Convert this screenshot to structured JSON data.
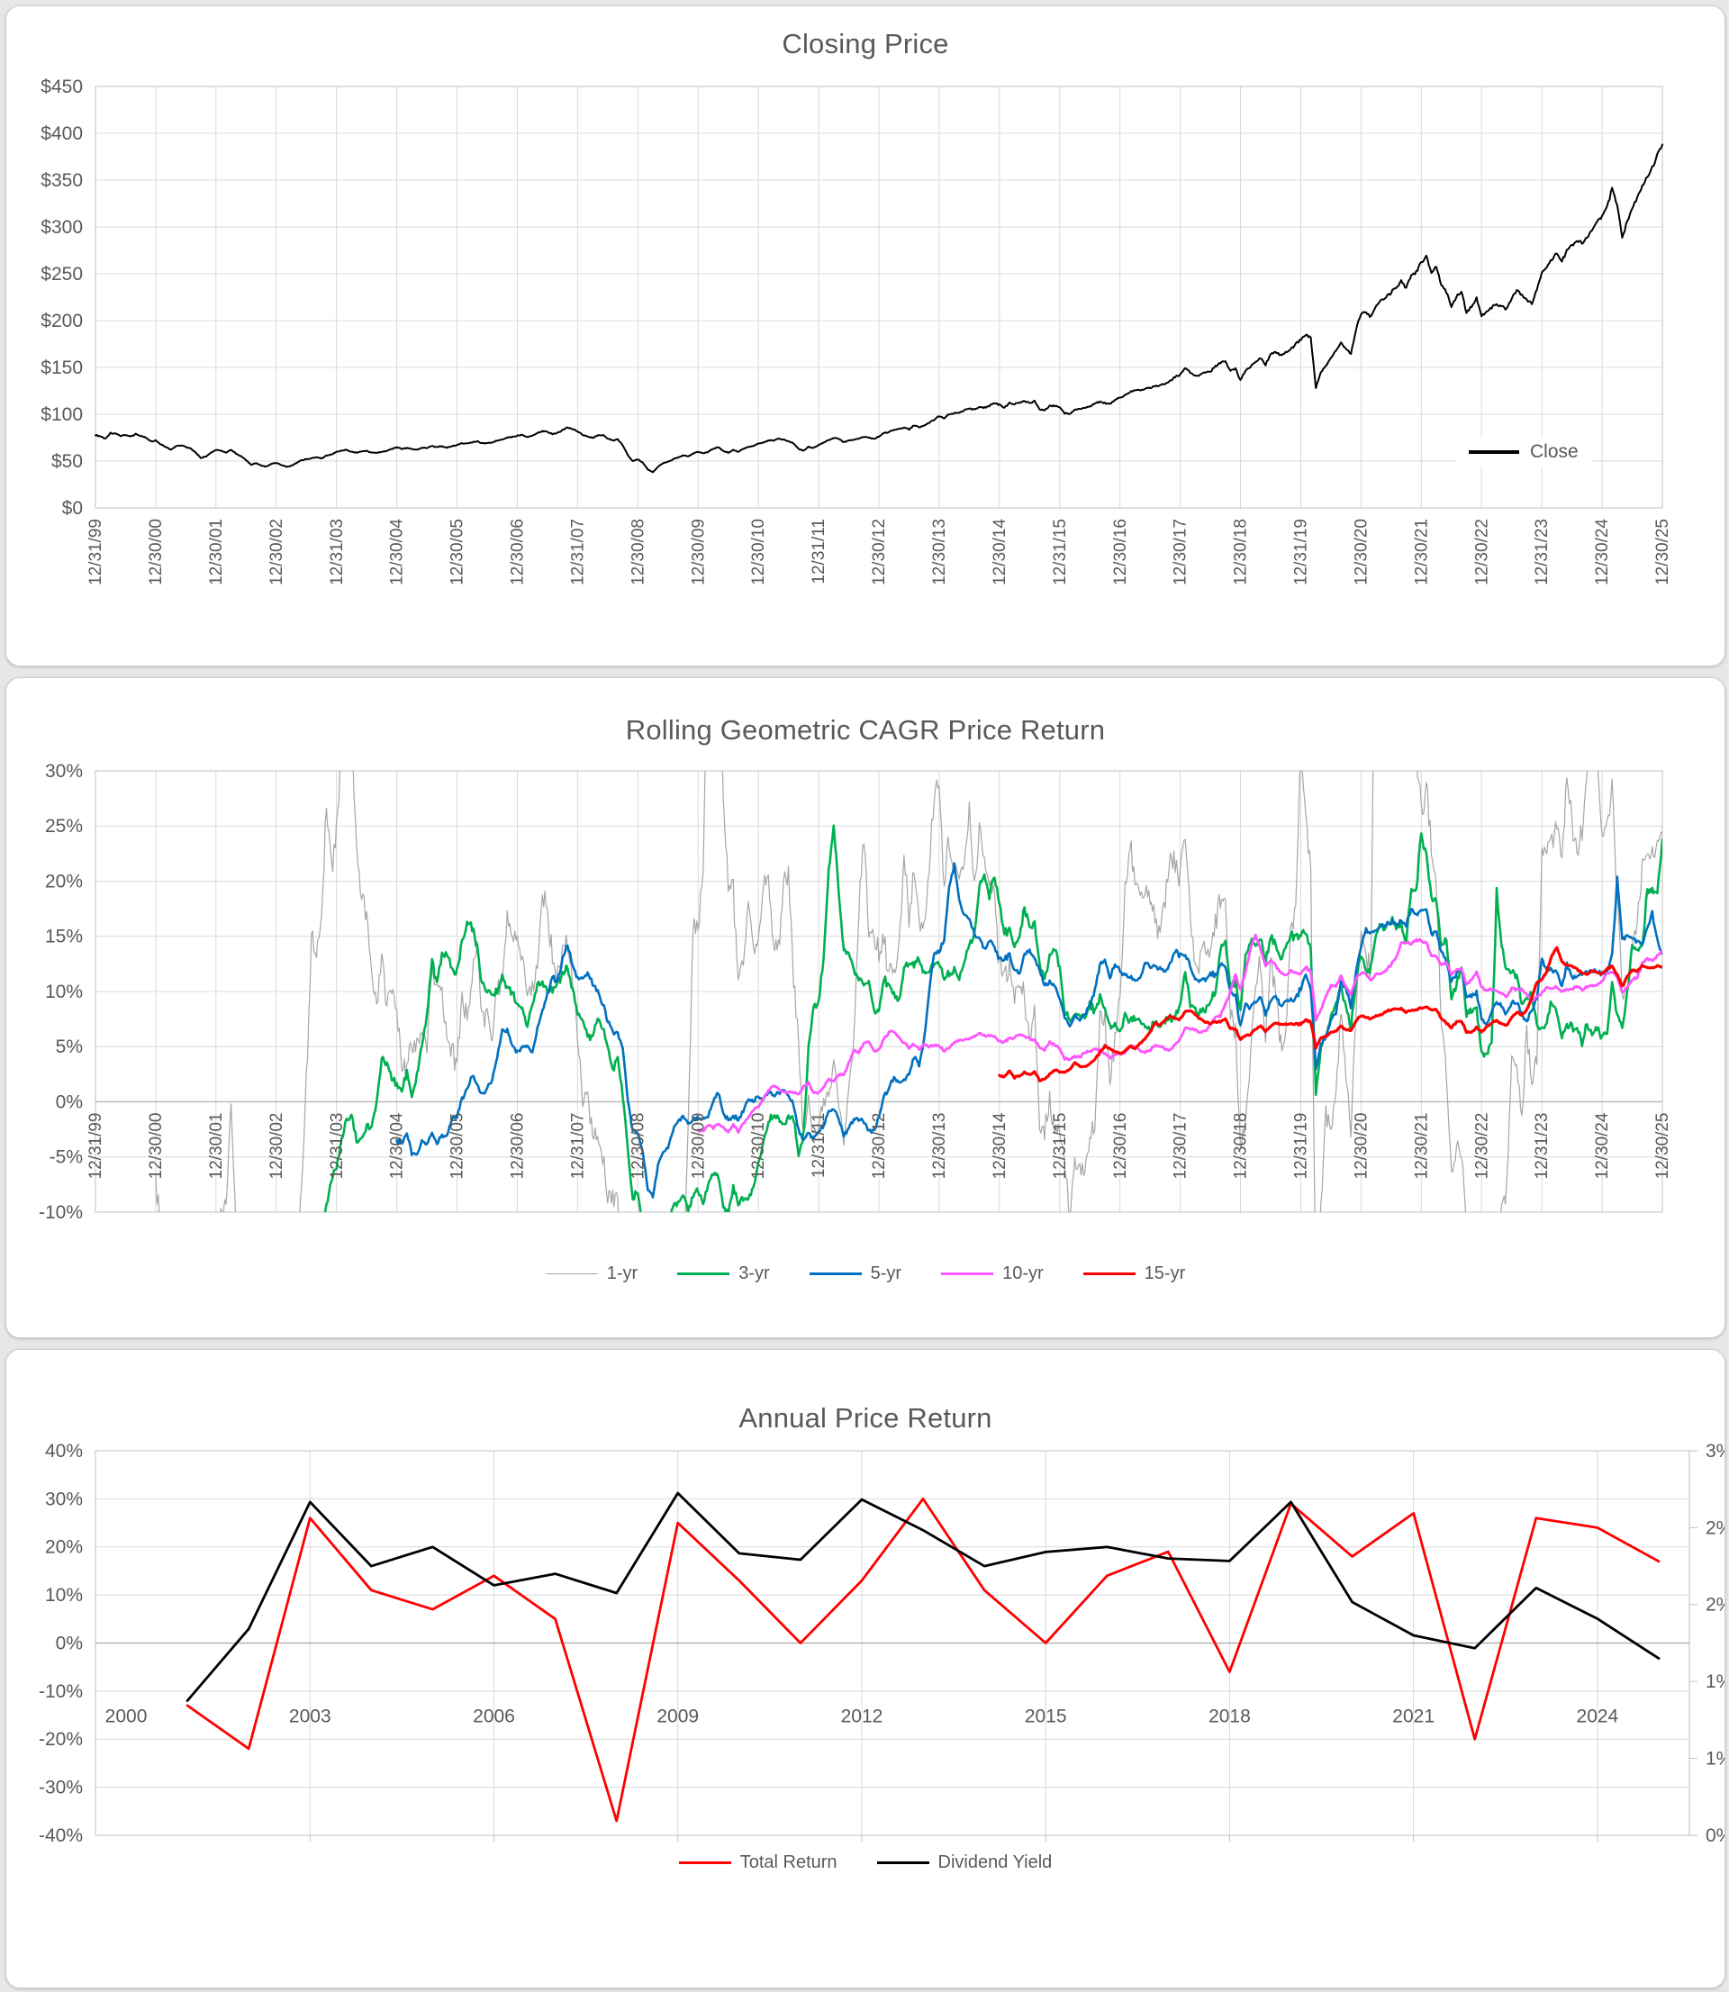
{
  "page": {
    "background": "#e7e7e7",
    "card_background": "#ffffff",
    "text_color": "#595959",
    "grid_color": "#d9d9d9",
    "axis_color": "#bfbfbf"
  },
  "chart_data": [
    {
      "type": "line",
      "title": "Closing Price",
      "legend": [
        "Close"
      ],
      "legend_position": "inside-bottom-right",
      "series_colors": [
        "#000000"
      ],
      "ylabel": "",
      "ylim": [
        0,
        450
      ],
      "y_tick_labels": [
        "$450",
        "$400",
        "$350",
        "$300",
        "$250",
        "$200",
        "$150",
        "$100",
        "$50",
        "$0"
      ],
      "x_start": "12/31/99",
      "x_frequency": "monthly",
      "x_tick_labels": [
        "12/31/99",
        "12/30/00",
        "12/30/01",
        "12/30/02",
        "12/31/03",
        "12/30/04",
        "12/30/05",
        "12/30/06",
        "12/31/07",
        "12/30/08",
        "12/30/09",
        "12/30/10",
        "12/31/11",
        "12/30/12",
        "12/30/13",
        "12/30/14",
        "12/31/15",
        "12/30/16",
        "12/30/17",
        "12/30/18",
        "12/31/19",
        "12/30/20",
        "12/30/21",
        "12/30/22",
        "12/31/23",
        "12/30/24",
        "12/30/25"
      ],
      "x_tick_every_months": 12,
      "close": [
        78,
        76,
        74,
        80,
        79,
        77,
        78,
        76,
        79,
        77,
        75,
        71,
        72,
        68,
        65,
        62,
        66,
        67,
        65,
        63,
        59,
        53,
        55,
        59,
        62,
        61,
        59,
        62,
        58,
        55,
        51,
        46,
        48,
        45,
        44,
        47,
        48,
        46,
        44,
        45,
        48,
        51,
        52,
        53,
        54,
        53,
        56,
        57,
        60,
        61,
        62,
        60,
        59,
        60,
        61,
        59,
        59,
        60,
        61,
        63,
        65,
        63,
        64,
        63,
        62,
        64,
        64,
        66,
        65,
        66,
        64,
        66,
        67,
        69,
        69,
        70,
        71,
        69,
        69,
        70,
        72,
        73,
        75,
        76,
        77,
        78,
        76,
        77,
        80,
        82,
        81,
        79,
        80,
        83,
        86,
        84,
        82,
        78,
        76,
        75,
        77,
        78,
        74,
        72,
        73,
        67,
        56,
        50,
        52,
        48,
        41,
        38,
        44,
        48,
        49,
        52,
        54,
        56,
        55,
        58,
        60,
        58,
        60,
        63,
        65,
        61,
        59,
        62,
        60,
        63,
        65,
        66,
        69,
        70,
        72,
        72,
        74,
        73,
        71,
        69,
        63,
        61,
        65,
        64,
        67,
        70,
        72,
        75,
        74,
        70,
        72,
        73,
        74,
        76,
        75,
        74,
        76,
        80,
        81,
        83,
        84,
        86,
        84,
        88,
        86,
        88,
        91,
        94,
        98,
        96,
        100,
        101,
        102,
        104,
        106,
        105,
        108,
        107,
        109,
        112,
        110,
        107,
        112,
        111,
        112,
        114,
        112,
        114,
        105,
        104,
        109,
        109,
        108,
        101,
        100,
        105,
        106,
        107,
        108,
        112,
        113,
        112,
        111,
        115,
        118,
        120,
        124,
        125,
        126,
        127,
        128,
        130,
        131,
        133,
        136,
        140,
        142,
        150,
        144,
        141,
        142,
        145,
        146,
        151,
        155,
        157,
        146,
        149,
        136,
        147,
        151,
        155,
        160,
        153,
        164,
        166,
        163,
        166,
        169,
        175,
        180,
        185,
        182,
        128,
        145,
        152,
        160,
        168,
        176,
        170,
        165,
        190,
        208,
        208,
        204,
        215,
        222,
        225,
        230,
        236,
        242,
        235,
        248,
        252,
        262,
        268,
        252,
        258,
        238,
        230,
        215,
        225,
        232,
        208,
        215,
        224,
        205,
        210,
        214,
        218,
        215,
        212,
        224,
        232,
        228,
        222,
        218,
        234,
        252,
        258,
        266,
        272,
        264,
        274,
        280,
        286,
        282,
        290,
        296,
        306,
        312,
        322,
        340,
        324,
        288,
        306,
        320,
        332,
        344,
        354,
        364,
        376,
        388
      ]
    },
    {
      "type": "line",
      "title": "Rolling Geometric CAGR Price Return",
      "legend": [
        "1-yr",
        "3-yr",
        "5-yr",
        "10-yr",
        "15-yr"
      ],
      "legend_position": "bottom-center",
      "series_colors": [
        "#a6a6a6",
        "#00b050",
        "#0070c0",
        "#ff55ff",
        "#ff0000"
      ],
      "rolling_windows_years": [
        1,
        3,
        5,
        10,
        15
      ],
      "derived_from": "monthly closing price series of the first chart (geometric CAGR of rolling windows, clipped to axis range)",
      "ylim": [
        -10,
        30
      ],
      "y_tick_labels": [
        "30%",
        "25%",
        "20%",
        "15%",
        "10%",
        "5%",
        "0%",
        "-5%",
        "-10%"
      ],
      "x_tick_labels": [
        "12/31/99",
        "12/30/00",
        "12/30/01",
        "12/30/02",
        "12/31/03",
        "12/30/04",
        "12/30/05",
        "12/30/06",
        "12/31/07",
        "12/30/08",
        "12/30/09",
        "12/30/10",
        "12/31/11",
        "12/30/12",
        "12/30/13",
        "12/30/14",
        "12/31/15",
        "12/30/16",
        "12/30/17",
        "12/30/18",
        "12/31/19",
        "12/30/20",
        "12/30/21",
        "12/30/22",
        "12/31/23",
        "12/30/24",
        "12/30/25"
      ]
    },
    {
      "type": "line",
      "title": "Annual Price Return",
      "legend": [
        "Total Return",
        "Dividend Yield"
      ],
      "legend_position": "bottom-center",
      "series_colors": [
        "#ff0000",
        "#000000"
      ],
      "categories": [
        2000,
        2001,
        2002,
        2003,
        2004,
        2005,
        2006,
        2007,
        2008,
        2009,
        2010,
        2011,
        2012,
        2013,
        2014,
        2015,
        2016,
        2017,
        2018,
        2019,
        2020,
        2021,
        2022,
        2023,
        2024,
        2025
      ],
      "x_tick_labels": [
        "2000",
        "2003",
        "2006",
        "2009",
        "2012",
        "2015",
        "2018",
        "2021",
        "2024"
      ],
      "left_axis": {
        "lim": [
          -40,
          40
        ],
        "tick_labels": [
          "40%",
          "30%",
          "20%",
          "10%",
          "0%",
          "-10%",
          "-20%",
          "-30%",
          "-40%"
        ]
      },
      "right_axis": {
        "lim": [
          0,
          3
        ],
        "tick_labels": [
          "3%",
          "2%",
          "2%",
          "1%",
          "1%",
          "0%"
        ]
      },
      "series": [
        {
          "name": "Total Return",
          "axis": "left",
          "unit": "%",
          "values": [
            null,
            -13,
            -22,
            26,
            11,
            7,
            14,
            5,
            -37,
            25,
            13,
            0,
            13,
            30,
            11,
            0,
            14,
            19,
            -6,
            29,
            18,
            27,
            -20,
            26,
            24,
            17
          ]
        },
        {
          "name": "Dividend Yield",
          "axis": "right",
          "unit": "%",
          "values": [
            null,
            1.05,
            1.61,
            2.6,
            2.1,
            2.25,
            1.95,
            2.04,
            1.89,
            2.67,
            2.2,
            2.15,
            2.62,
            2.38,
            2.1,
            2.21,
            2.25,
            2.16,
            2.14,
            2.6,
            1.82,
            1.56,
            1.46,
            1.93,
            1.69,
            1.38
          ]
        }
      ]
    }
  ]
}
